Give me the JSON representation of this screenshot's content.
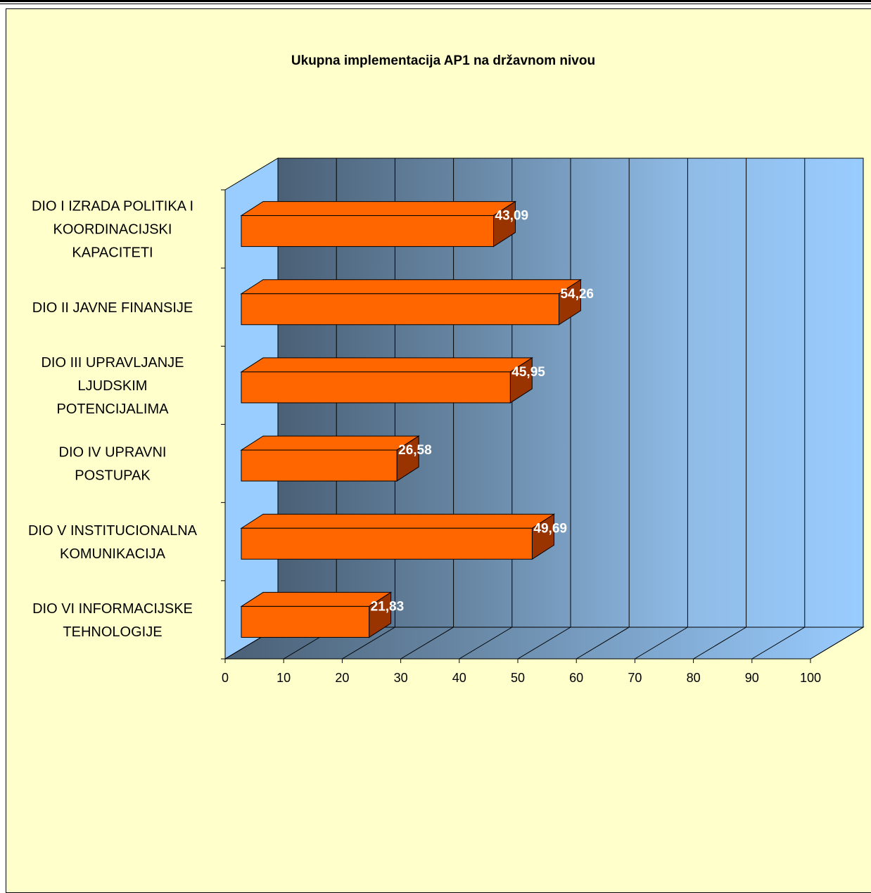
{
  "chart_data": {
    "type": "bar",
    "orientation": "horizontal",
    "style": "3d",
    "title": "Ukupna implementacija AP1 na državnom nivou",
    "categories": [
      [
        "DIO I IZRADA POLITIKA I",
        "KOORDINACIJSKI",
        "KAPACITETI"
      ],
      [
        "DIO II JAVNE FINANSIJE"
      ],
      [
        "DIO III UPRAVLJANJE",
        "LJUDSKIM",
        "POTENCIJALIMA"
      ],
      [
        "DIO IV UPRAVNI",
        "POSTUPAK"
      ],
      [
        "DIO V INSTITUCIONALNA",
        "KOMUNIKACIJA"
      ],
      [
        "DIO VI INFORMACIJSKE",
        "TEHNOLOGIJE"
      ]
    ],
    "values": [
      43.09,
      54.26,
      45.95,
      26.58,
      49.69,
      21.83
    ],
    "data_labels": [
      "43,09",
      "54,26",
      "45,95",
      "26,58",
      "49,69",
      "21,83"
    ],
    "xlim": [
      0,
      100
    ],
    "x_ticks": [
      "0",
      "10",
      "20",
      "30",
      "40",
      "50",
      "60",
      "70",
      "80",
      "90",
      "100"
    ],
    "grid": true,
    "colors": {
      "bar_front": "#ff6600",
      "bar_top": "#ff6600",
      "bar_side": "#993300",
      "wall_dark": "#4a6076",
      "wall_light": "#99ccff",
      "background": "#ffffcc",
      "label_text": "#ffffff"
    }
  }
}
